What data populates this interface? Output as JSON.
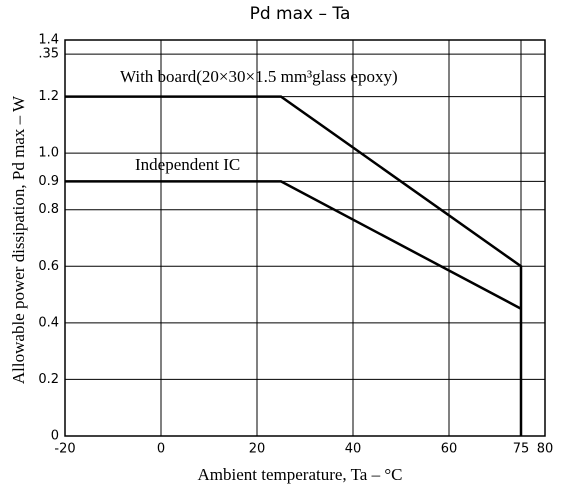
{
  "chart_data": {
    "type": "line",
    "title": "Pd max  –  Ta",
    "xlabel": "Ambient temperature, Ta – °C",
    "ylabel": "Allowable power dissipation, Pd max  –  W",
    "series": [
      {
        "name": "With board(20×30×1.5 mm³glass epoxy)",
        "color": "#000000",
        "x": [
          -20,
          25,
          75,
          75
        ],
        "values": [
          1.2,
          1.2,
          0.6,
          0
        ]
      },
      {
        "name": "Independent IC",
        "color": "#000000",
        "x": [
          -20,
          25,
          75
        ],
        "values": [
          0.9,
          0.9,
          0.45
        ]
      }
    ],
    "xlim": [
      -20,
      80
    ],
    "xticks": [
      -20,
      0,
      20,
      40,
      60,
      75,
      80
    ],
    "ylim": [
      0,
      1.4
    ],
    "yticks": [
      0,
      0.2,
      0.4,
      0.6,
      0.8,
      0.9,
      {
        "value": 1,
        "label": "1.0"
      },
      1.2,
      {
        "value": 1.35,
        "label": ".35"
      },
      1.4
    ],
    "grid": true
  }
}
